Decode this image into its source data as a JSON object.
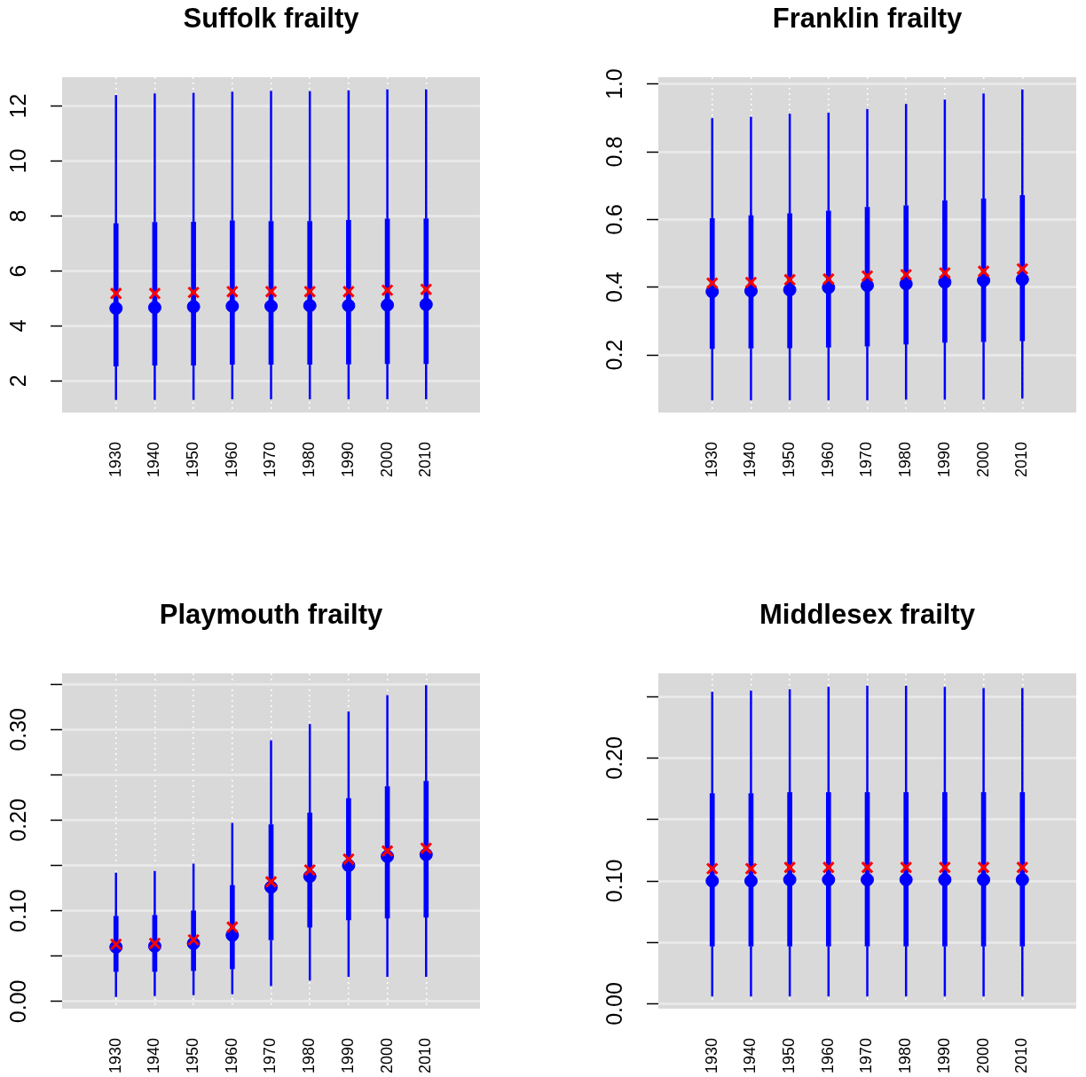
{
  "chart_data": [
    {
      "type": "box",
      "title": "Suffolk frailty",
      "categories": [
        "1930",
        "1940",
        "1950",
        "1960",
        "1970",
        "1980",
        "1990",
        "2000",
        "2010"
      ],
      "ylim": [
        0.85,
        13.05
      ],
      "yticks": [
        2,
        4,
        6,
        8,
        10,
        12
      ],
      "grid": true,
      "series": [
        {
          "color": "#0000ff",
          "marker": "circle",
          "boxes": [
            {
              "low": 1.31,
              "q1": 2.54,
              "median": 4.64,
              "q3": 7.72,
              "high": 12.4
            },
            {
              "low": 1.31,
              "q1": 2.57,
              "median": 4.67,
              "q3": 7.77,
              "high": 12.46
            },
            {
              "low": 1.31,
              "q1": 2.57,
              "median": 4.7,
              "q3": 7.78,
              "high": 12.48
            },
            {
              "low": 1.33,
              "q1": 2.6,
              "median": 4.72,
              "q3": 7.83,
              "high": 12.52
            },
            {
              "low": 1.33,
              "q1": 2.6,
              "median": 4.72,
              "q3": 7.8,
              "high": 12.55
            },
            {
              "low": 1.33,
              "q1": 2.6,
              "median": 4.74,
              "q3": 7.8,
              "high": 12.54
            },
            {
              "low": 1.33,
              "q1": 2.61,
              "median": 4.74,
              "q3": 7.84,
              "high": 12.57
            },
            {
              "low": 1.33,
              "q1": 2.63,
              "median": 4.76,
              "q3": 7.89,
              "high": 12.61
            },
            {
              "low": 1.33,
              "q1": 2.63,
              "median": 4.78,
              "q3": 7.9,
              "high": 12.61
            }
          ]
        },
        {
          "type": "scatter",
          "color": "#ff0000",
          "marker": "cross",
          "values": [
            5.18,
            5.18,
            5.22,
            5.25,
            5.25,
            5.25,
            5.25,
            5.3,
            5.33
          ]
        }
      ]
    },
    {
      "type": "box",
      "title": "Franklin frailty",
      "categories": [
        "1930",
        "1940",
        "1950",
        "1960",
        "1970",
        "1980",
        "1990",
        "2000",
        "2010"
      ],
      "ylim": [
        0.03,
        1.02
      ],
      "yticks": [
        0.2,
        0.4,
        0.6,
        0.8,
        {
          "value": 1,
          "label": "1.0"
        }
      ],
      "grid": true,
      "series": [
        {
          "color": "#0000ff",
          "marker": "circle",
          "boxes": [
            {
              "low": 0.066,
              "q1": 0.219,
              "median": 0.387,
              "q3": 0.603,
              "high": 0.899
            },
            {
              "low": 0.066,
              "q1": 0.22,
              "median": 0.389,
              "q3": 0.611,
              "high": 0.903
            },
            {
              "low": 0.066,
              "q1": 0.221,
              "median": 0.392,
              "q3": 0.617,
              "high": 0.912
            },
            {
              "low": 0.066,
              "q1": 0.223,
              "median": 0.399,
              "q3": 0.625,
              "high": 0.915
            },
            {
              "low": 0.066,
              "q1": 0.226,
              "median": 0.405,
              "q3": 0.636,
              "high": 0.926
            },
            {
              "low": 0.068,
              "q1": 0.232,
              "median": 0.41,
              "q3": 0.641,
              "high": 0.941
            },
            {
              "low": 0.068,
              "q1": 0.237,
              "median": 0.415,
              "q3": 0.655,
              "high": 0.954
            },
            {
              "low": 0.068,
              "q1": 0.239,
              "median": 0.42,
              "q3": 0.661,
              "high": 0.972
            },
            {
              "low": 0.071,
              "q1": 0.242,
              "median": 0.423,
              "q3": 0.671,
              "high": 0.984
            }
          ]
        },
        {
          "type": "scatter",
          "color": "#ff0000",
          "marker": "cross",
          "values": [
            0.412,
            0.414,
            0.422,
            0.424,
            0.433,
            0.437,
            0.442,
            0.447,
            0.454
          ]
        }
      ]
    },
    {
      "type": "box",
      "title": "Playmouth frailty",
      "categories": [
        "1930",
        "1940",
        "1950",
        "1960",
        "1970",
        "1980",
        "1990",
        "2000",
        "2010"
      ],
      "ylim": [
        -0.008,
        0.362
      ],
      "yticks": [
        {
          "value": 0,
          "label": "0.00"
        },
        {
          "value": 0.05,
          "label": null
        },
        {
          "value": 0.1,
          "label": "0.10"
        },
        {
          "value": 0.15,
          "label": null
        },
        {
          "value": 0.2,
          "label": "0.20"
        },
        {
          "value": 0.25,
          "label": null
        },
        {
          "value": 0.3,
          "label": "0.30"
        },
        {
          "value": 0.35,
          "label": null
        }
      ],
      "grid": true,
      "series": [
        {
          "color": "#0000ff",
          "marker": "circle",
          "boxes": [
            {
              "low": 0.005,
              "q1": 0.033,
              "median": 0.06,
              "q3": 0.094,
              "high": 0.142
            },
            {
              "low": 0.006,
              "q1": 0.033,
              "median": 0.061,
              "q3": 0.095,
              "high": 0.144
            },
            {
              "low": 0.007,
              "q1": 0.034,
              "median": 0.064,
              "q3": 0.1,
              "high": 0.152
            },
            {
              "low": 0.008,
              "q1": 0.036,
              "median": 0.073,
              "q3": 0.128,
              "high": 0.197
            },
            {
              "low": 0.017,
              "q1": 0.068,
              "median": 0.126,
              "q3": 0.195,
              "high": 0.288
            },
            {
              "low": 0.023,
              "q1": 0.082,
              "median": 0.138,
              "q3": 0.208,
              "high": 0.306
            },
            {
              "low": 0.027,
              "q1": 0.09,
              "median": 0.15,
              "q3": 0.224,
              "high": 0.32
            },
            {
              "low": 0.027,
              "q1": 0.092,
              "median": 0.16,
              "q3": 0.237,
              "high": 0.338
            },
            {
              "low": 0.027,
              "q1": 0.093,
              "median": 0.162,
              "q3": 0.243,
              "high": 0.349
            }
          ]
        },
        {
          "type": "scatter",
          "color": "#ff0000",
          "marker": "cross",
          "values": [
            0.063,
            0.064,
            0.068,
            0.082,
            0.132,
            0.145,
            0.157,
            0.166,
            0.169
          ]
        }
      ]
    },
    {
      "type": "box",
      "title": "Middlesex frailty",
      "categories": [
        "1930",
        "1940",
        "1950",
        "1960",
        "1970",
        "1980",
        "1990",
        "2000",
        "2010"
      ],
      "ylim": [
        -0.004,
        0.269
      ],
      "yticks": [
        {
          "value": 0,
          "label": "0.00"
        },
        {
          "value": 0.05,
          "label": null
        },
        {
          "value": 0.1,
          "label": "0.10"
        },
        {
          "value": 0.15,
          "label": null
        },
        {
          "value": 0.2,
          "label": "0.20"
        },
        {
          "value": 0.25,
          "label": null
        }
      ],
      "grid": true,
      "series": [
        {
          "color": "#0000ff",
          "marker": "circle",
          "boxes": [
            {
              "low": 0.006,
              "q1": 0.047,
              "median": 0.1,
              "q3": 0.171,
              "high": 0.254
            },
            {
              "low": 0.006,
              "q1": 0.047,
              "median": 0.1,
              "q3": 0.171,
              "high": 0.255
            },
            {
              "low": 0.006,
              "q1": 0.047,
              "median": 0.101,
              "q3": 0.172,
              "high": 0.256
            },
            {
              "low": 0.006,
              "q1": 0.047,
              "median": 0.101,
              "q3": 0.172,
              "high": 0.258
            },
            {
              "low": 0.006,
              "q1": 0.047,
              "median": 0.101,
              "q3": 0.172,
              "high": 0.259
            },
            {
              "low": 0.006,
              "q1": 0.047,
              "median": 0.101,
              "q3": 0.172,
              "high": 0.259
            },
            {
              "low": 0.006,
              "q1": 0.047,
              "median": 0.101,
              "q3": 0.172,
              "high": 0.258
            },
            {
              "low": 0.006,
              "q1": 0.047,
              "median": 0.101,
              "q3": 0.172,
              "high": 0.257
            },
            {
              "low": 0.006,
              "q1": 0.047,
              "median": 0.101,
              "q3": 0.172,
              "high": 0.257
            }
          ]
        },
        {
          "type": "scatter",
          "color": "#ff0000",
          "marker": "cross",
          "values": [
            0.11,
            0.11,
            0.111,
            0.111,
            0.111,
            0.111,
            0.111,
            0.111,
            0.111
          ]
        }
      ]
    }
  ]
}
